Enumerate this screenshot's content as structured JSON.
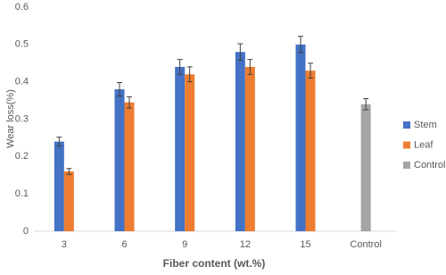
{
  "chart_data": {
    "type": "bar",
    "x_label": "Fiber content (wt.%)",
    "y_label": "Wear loss(%)",
    "categories": [
      "3",
      "6",
      "9",
      "12",
      "15",
      "Control"
    ],
    "series": [
      {
        "name": "Stem",
        "color": "#4472c4",
        "values": [
          0.24,
          0.38,
          0.44,
          0.48,
          0.5,
          null
        ],
        "errors": [
          0.012,
          0.018,
          0.02,
          0.022,
          0.022,
          null
        ]
      },
      {
        "name": "Leaf",
        "color": "#ed7d31",
        "values": [
          0.16,
          0.345,
          0.42,
          0.44,
          0.43,
          null
        ],
        "errors": [
          0.008,
          0.015,
          0.02,
          0.02,
          0.02,
          null
        ]
      },
      {
        "name": "Control",
        "color": "#a5a5a5",
        "values": [
          null,
          null,
          null,
          null,
          null,
          0.34
        ],
        "errors": [
          null,
          null,
          null,
          null,
          null,
          0.015
        ]
      }
    ],
    "ylim": [
      0,
      0.6
    ],
    "yticks": [
      0,
      0.1,
      0.2,
      0.3,
      0.4,
      0.5,
      0.6
    ],
    "legend": "right"
  }
}
